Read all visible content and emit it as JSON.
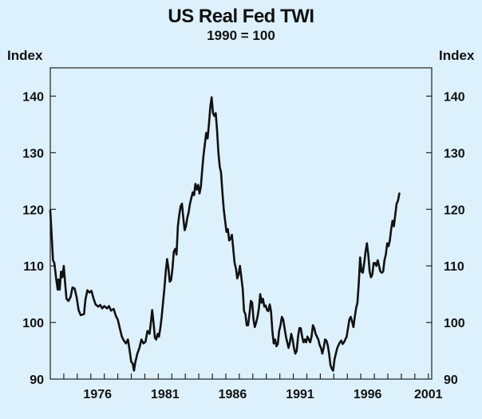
{
  "chart_data": {
    "type": "line",
    "title": "US Real Fed TWI",
    "subtitle": "1990 = 100",
    "ylabel_left": "Index",
    "ylabel_right": "Index",
    "xlim": [
      1973.0,
      2001.25
    ],
    "ylim": [
      90,
      145
    ],
    "yticks": [
      90,
      100,
      110,
      120,
      130,
      140
    ],
    "xtick_labels": [
      "1976",
      "1981",
      "1986",
      "1991",
      "1996",
      "2001"
    ],
    "xtick_positions": [
      1976.5,
      1981.5,
      1986.5,
      1991.5,
      1996.5,
      2001.0
    ],
    "grid": false,
    "colors": {
      "line": "#111111",
      "background": "#dcf1fb",
      "axis": "#222222"
    },
    "series": [
      {
        "name": "US Real Fed TWI",
        "points": [
          [
            1973.0,
            119.8
          ],
          [
            1973.1,
            115.5
          ],
          [
            1973.2,
            111.0
          ],
          [
            1973.3,
            110.5
          ],
          [
            1973.45,
            107.5
          ],
          [
            1973.55,
            105.8
          ],
          [
            1973.6,
            107.6
          ],
          [
            1973.7,
            105.8
          ],
          [
            1973.8,
            109.0
          ],
          [
            1973.9,
            108.0
          ],
          [
            1974.0,
            110.0
          ],
          [
            1974.1,
            107.0
          ],
          [
            1974.2,
            104.2
          ],
          [
            1974.35,
            103.8
          ],
          [
            1974.5,
            104.5
          ],
          [
            1974.65,
            106.2
          ],
          [
            1974.8,
            106.0
          ],
          [
            1974.95,
            104.5
          ],
          [
            1975.1,
            102.2
          ],
          [
            1975.25,
            101.3
          ],
          [
            1975.5,
            101.5
          ],
          [
            1975.6,
            104.0
          ],
          [
            1975.75,
            105.7
          ],
          [
            1975.9,
            105.3
          ],
          [
            1976.05,
            105.6
          ],
          [
            1976.2,
            104.3
          ],
          [
            1976.35,
            103.2
          ],
          [
            1976.55,
            102.8
          ],
          [
            1976.7,
            103.1
          ],
          [
            1976.85,
            102.5
          ],
          [
            1977.0,
            102.9
          ],
          [
            1977.2,
            102.5
          ],
          [
            1977.35,
            102.9
          ],
          [
            1977.5,
            102.1
          ],
          [
            1977.7,
            102.4
          ],
          [
            1977.85,
            101.2
          ],
          [
            1978.0,
            100.5
          ],
          [
            1978.15,
            99.0
          ],
          [
            1978.3,
            97.5
          ],
          [
            1978.45,
            96.8
          ],
          [
            1978.6,
            96.3
          ],
          [
            1978.75,
            97.0
          ],
          [
            1978.85,
            95.5
          ],
          [
            1979.0,
            93.0
          ],
          [
            1979.1,
            92.8
          ],
          [
            1979.2,
            91.5
          ],
          [
            1979.3,
            93.0
          ],
          [
            1979.45,
            94.5
          ],
          [
            1979.6,
            95.5
          ],
          [
            1979.75,
            97.0
          ],
          [
            1979.9,
            96.3
          ],
          [
            1980.05,
            96.6
          ],
          [
            1980.2,
            98.5
          ],
          [
            1980.35,
            98.0
          ],
          [
            1980.45,
            100.0
          ],
          [
            1980.55,
            102.2
          ],
          [
            1980.65,
            100.0
          ],
          [
            1980.75,
            97.3
          ],
          [
            1980.85,
            97.0
          ],
          [
            1980.95,
            98.0
          ],
          [
            1981.05,
            97.5
          ],
          [
            1981.15,
            99.0
          ],
          [
            1981.25,
            101.0
          ],
          [
            1981.35,
            103.5
          ],
          [
            1981.45,
            106.0
          ],
          [
            1981.55,
            109.0
          ],
          [
            1981.65,
            111.2
          ],
          [
            1981.75,
            109.5
          ],
          [
            1981.85,
            107.2
          ],
          [
            1981.95,
            107.5
          ],
          [
            1982.05,
            109.5
          ],
          [
            1982.15,
            112.5
          ],
          [
            1982.25,
            113.0
          ],
          [
            1982.35,
            112.0
          ],
          [
            1982.45,
            117.0
          ],
          [
            1982.55,
            119.0
          ],
          [
            1982.65,
            120.5
          ],
          [
            1982.75,
            121.0
          ],
          [
            1982.85,
            118.5
          ],
          [
            1982.95,
            116.3
          ],
          [
            1983.05,
            117.0
          ],
          [
            1983.15,
            118.5
          ],
          [
            1983.25,
            119.5
          ],
          [
            1983.35,
            121.0
          ],
          [
            1983.45,
            122.0
          ],
          [
            1983.55,
            123.0
          ],
          [
            1983.65,
            122.5
          ],
          [
            1983.75,
            124.5
          ],
          [
            1983.85,
            123.5
          ],
          [
            1983.95,
            124.3
          ],
          [
            1984.05,
            122.8
          ],
          [
            1984.15,
            124.0
          ],
          [
            1984.25,
            127.0
          ],
          [
            1984.35,
            129.5
          ],
          [
            1984.45,
            131.5
          ],
          [
            1984.55,
            133.5
          ],
          [
            1984.65,
            132.5
          ],
          [
            1984.75,
            135.0
          ],
          [
            1984.85,
            138.0
          ],
          [
            1984.95,
            139.8
          ],
          [
            1985.05,
            137.0
          ],
          [
            1985.15,
            136.5
          ],
          [
            1985.25,
            137.0
          ],
          [
            1985.35,
            134.0
          ],
          [
            1985.45,
            130.0
          ],
          [
            1985.55,
            127.5
          ],
          [
            1985.65,
            126.5
          ],
          [
            1985.75,
            123.0
          ],
          [
            1985.85,
            120.0
          ],
          [
            1985.95,
            118.0
          ],
          [
            1986.05,
            116.0
          ],
          [
            1986.15,
            116.5
          ],
          [
            1986.25,
            114.5
          ],
          [
            1986.35,
            114.8
          ],
          [
            1986.45,
            115.5
          ],
          [
            1986.55,
            113.0
          ],
          [
            1986.65,
            110.5
          ],
          [
            1986.75,
            109.5
          ],
          [
            1986.85,
            107.8
          ],
          [
            1986.95,
            108.5
          ],
          [
            1987.05,
            110.0
          ],
          [
            1987.15,
            108.0
          ],
          [
            1987.25,
            106.0
          ],
          [
            1987.35,
            102.0
          ],
          [
            1987.45,
            101.5
          ],
          [
            1987.55,
            99.5
          ],
          [
            1987.65,
            99.5
          ],
          [
            1987.75,
            101.5
          ],
          [
            1987.85,
            103.8
          ],
          [
            1987.95,
            103.5
          ],
          [
            1988.05,
            100.5
          ],
          [
            1988.15,
            99.2
          ],
          [
            1988.25,
            100.0
          ],
          [
            1988.35,
            101.0
          ],
          [
            1988.45,
            102.5
          ],
          [
            1988.55,
            105.0
          ],
          [
            1988.65,
            103.5
          ],
          [
            1988.75,
            104.2
          ],
          [
            1988.85,
            102.8
          ],
          [
            1988.95,
            103.0
          ],
          [
            1989.05,
            102.2
          ],
          [
            1989.15,
            102.0
          ],
          [
            1989.25,
            103.2
          ],
          [
            1989.35,
            102.0
          ],
          [
            1989.45,
            98.5
          ],
          [
            1989.55,
            96.3
          ],
          [
            1989.65,
            97.0
          ],
          [
            1989.75,
            95.8
          ],
          [
            1989.85,
            96.2
          ],
          [
            1989.95,
            98.5
          ],
          [
            1990.05,
            99.5
          ],
          [
            1990.15,
            101.0
          ],
          [
            1990.25,
            100.5
          ],
          [
            1990.35,
            99.0
          ],
          [
            1990.45,
            97.5
          ],
          [
            1990.55,
            96.5
          ],
          [
            1990.65,
            95.5
          ],
          [
            1990.75,
            96.5
          ],
          [
            1990.85,
            98.0
          ],
          [
            1990.95,
            97.0
          ],
          [
            1991.05,
            95.5
          ],
          [
            1991.15,
            94.5
          ],
          [
            1991.25,
            95.0
          ],
          [
            1991.35,
            97.5
          ],
          [
            1991.45,
            99.0
          ],
          [
            1991.55,
            99.0
          ],
          [
            1991.65,
            97.5
          ],
          [
            1991.75,
            96.5
          ],
          [
            1991.85,
            97.0
          ],
          [
            1991.95,
            96.5
          ],
          [
            1992.05,
            97.5
          ],
          [
            1992.15,
            97.0
          ],
          [
            1992.25,
            96.5
          ],
          [
            1992.35,
            97.5
          ],
          [
            1992.45,
            99.5
          ],
          [
            1992.55,
            99.0
          ],
          [
            1992.65,
            98.0
          ],
          [
            1992.75,
            97.5
          ],
          [
            1992.85,
            97.0
          ],
          [
            1992.95,
            96.0
          ],
          [
            1993.05,
            95.5
          ],
          [
            1993.15,
            94.5
          ],
          [
            1993.25,
            95.5
          ],
          [
            1993.35,
            97.0
          ],
          [
            1993.45,
            96.8
          ],
          [
            1993.55,
            96.0
          ],
          [
            1993.65,
            94.5
          ],
          [
            1993.75,
            92.5
          ],
          [
            1993.85,
            91.8
          ],
          [
            1993.95,
            91.5
          ],
          [
            1994.05,
            93.5
          ],
          [
            1994.15,
            94.5
          ],
          [
            1994.25,
            95.5
          ],
          [
            1994.35,
            96.0
          ],
          [
            1994.45,
            96.5
          ],
          [
            1994.55,
            96.8
          ],
          [
            1994.65,
            96.2
          ],
          [
            1994.75,
            96.5
          ],
          [
            1994.85,
            97.0
          ],
          [
            1994.95,
            97.5
          ],
          [
            1995.05,
            99.0
          ],
          [
            1995.15,
            100.5
          ],
          [
            1995.25,
            101.0
          ],
          [
            1995.35,
            100.2
          ],
          [
            1995.45,
            99.2
          ],
          [
            1995.55,
            101.0
          ],
          [
            1995.65,
            102.5
          ],
          [
            1995.75,
            103.5
          ],
          [
            1995.85,
            107.0
          ],
          [
            1995.95,
            111.5
          ],
          [
            1996.05,
            109.0
          ],
          [
            1996.15,
            108.8
          ],
          [
            1996.25,
            110.5
          ],
          [
            1996.35,
            112.5
          ],
          [
            1996.45,
            114.0
          ],
          [
            1996.55,
            112.0
          ],
          [
            1996.65,
            109.0
          ],
          [
            1996.75,
            108.0
          ],
          [
            1996.85,
            108.5
          ],
          [
            1996.95,
            110.5
          ],
          [
            1997.05,
            110.5
          ],
          [
            1997.15,
            110.0
          ],
          [
            1997.25,
            111.0
          ],
          [
            1997.35,
            110.0
          ],
          [
            1997.45,
            109.0
          ],
          [
            1997.55,
            108.8
          ],
          [
            1997.65,
            109.0
          ],
          [
            1997.75,
            111.0
          ],
          [
            1997.85,
            112.0
          ],
          [
            1997.95,
            114.0
          ],
          [
            1998.05,
            113.5
          ],
          [
            1998.15,
            114.5
          ],
          [
            1998.25,
            116.5
          ],
          [
            1998.35,
            118.0
          ],
          [
            1998.45,
            117.0
          ],
          [
            1998.55,
            119.0
          ],
          [
            1998.65,
            121.0
          ],
          [
            1998.75,
            121.5
          ],
          [
            1998.85,
            122.8
          ]
        ]
      }
    ]
  }
}
